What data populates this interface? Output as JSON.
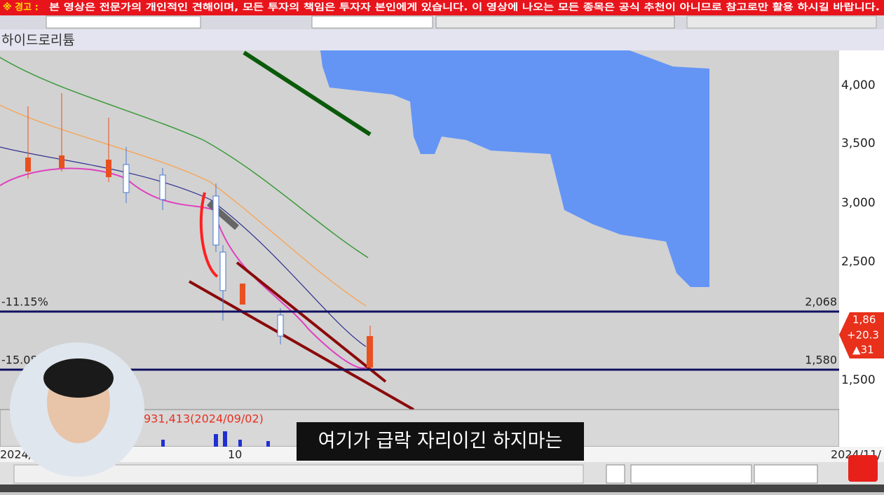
{
  "warning": {
    "prefix": "※ 경고 :",
    "text": "본 영상은 전문가의 개인적인 견해이며, 모든 투자의 책임은 투자자 본인에게 있습니다. 이 영상에 나오는 모든 종목은 공식 추천이 아니므로 참고로만 활용 하시길 바랍니다."
  },
  "stock_name": "하이드로리튬",
  "price_axis": {
    "labels": [
      "4,000",
      "3,500",
      "3,000",
      "2,500",
      "1,500"
    ]
  },
  "levels": [
    {
      "pct": "-11.15%",
      "price": "2,068"
    },
    {
      "pct": "-15.08",
      "price": "1,580"
    }
  ],
  "current": {
    "price": "1,86",
    "change": "+20.3",
    "delta": "▲31"
  },
  "volume": {
    "max_label": "931,413(2024/09/02)"
  },
  "dates": [
    "2024/",
    "10",
    "2024/11/"
  ],
  "subtitle": "여기가 급락 자리이긴 하지마는"
}
